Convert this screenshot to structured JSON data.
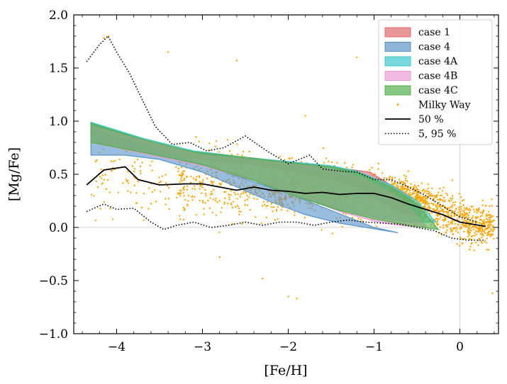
{
  "chart_data": {
    "type": "scatter",
    "xlabel": "[Fe/H]",
    "ylabel": "[Mg/Fe]",
    "xlim": [
      -4.5,
      0.45
    ],
    "ylim": [
      -1.0,
      2.0
    ],
    "xticks": [
      -4,
      -3,
      -2,
      -1,
      0
    ],
    "xtick_labels": [
      "−4",
      "−3",
      "−2",
      "−1",
      "0"
    ],
    "yticks": [
      -1.0,
      -0.5,
      0.0,
      0.5,
      1.0,
      1.5,
      2.0
    ],
    "ytick_labels": [
      "−1.0",
      "−0.5",
      "0.0",
      "0.5",
      "1.0",
      "1.5",
      "2.0"
    ],
    "reference_lines": {
      "y": 0.0,
      "x": 0.0
    },
    "bands": [
      {
        "name": "case 1",
        "color": "#e36b6f",
        "upper": [
          [
            -4.3,
            0.97
          ],
          [
            -3.6,
            0.8
          ],
          [
            -3.0,
            0.69
          ],
          [
            -2.5,
            0.66
          ],
          [
            -2.0,
            0.62
          ],
          [
            -1.5,
            0.57
          ],
          [
            -1.05,
            0.52
          ],
          [
            -0.6,
            0.3
          ],
          [
            -0.45,
            0.14
          ]
        ],
        "lower": [
          [
            -4.3,
            0.8
          ],
          [
            -3.6,
            0.72
          ],
          [
            -3.0,
            0.64
          ],
          [
            -2.5,
            0.6
          ],
          [
            -2.0,
            0.54
          ],
          [
            -1.5,
            0.46
          ],
          [
            -1.2,
            0.38
          ],
          [
            -1.0,
            0.28
          ],
          [
            -0.7,
            0.15
          ],
          [
            -0.45,
            0.1
          ]
        ]
      },
      {
        "name": "case 4",
        "color": "#5b95c9",
        "upper": [
          [
            -4.3,
            0.92
          ],
          [
            -3.8,
            0.8
          ],
          [
            -3.2,
            0.64
          ],
          [
            -2.6,
            0.48
          ],
          [
            -2.0,
            0.32
          ],
          [
            -1.5,
            0.16
          ],
          [
            -1.0,
            0.0
          ],
          [
            -0.72,
            -0.05
          ]
        ],
        "lower": [
          [
            -4.3,
            0.68
          ],
          [
            -3.9,
            0.68
          ],
          [
            -3.5,
            0.64
          ],
          [
            -3.0,
            0.52
          ],
          [
            -2.6,
            0.38
          ],
          [
            -2.2,
            0.24
          ],
          [
            -1.8,
            0.12
          ],
          [
            -1.4,
            0.04
          ],
          [
            -0.72,
            -0.05
          ]
        ]
      },
      {
        "name": "case 4A",
        "color": "#3fc9cf",
        "upper": [
          [
            -4.3,
            0.99
          ],
          [
            -3.7,
            0.84
          ],
          [
            -3.1,
            0.72
          ],
          [
            -2.5,
            0.66
          ],
          [
            -2.0,
            0.62
          ],
          [
            -1.5,
            0.58
          ],
          [
            -1.2,
            0.53
          ],
          [
            -0.8,
            0.4
          ],
          [
            -0.5,
            0.25
          ],
          [
            -0.28,
            0.05
          ]
        ],
        "lower": [
          [
            -4.3,
            0.8
          ],
          [
            -3.6,
            0.7
          ],
          [
            -3.0,
            0.6
          ],
          [
            -2.4,
            0.45
          ],
          [
            -1.9,
            0.3
          ],
          [
            -1.4,
            0.17
          ],
          [
            -1.0,
            0.1
          ],
          [
            -0.6,
            0.05
          ],
          [
            -0.28,
            0.05
          ]
        ]
      },
      {
        "name": "case 4B",
        "color": "#ed9cd6",
        "upper": [
          [
            -4.3,
            0.95
          ],
          [
            -3.6,
            0.8
          ],
          [
            -3.0,
            0.68
          ],
          [
            -2.5,
            0.64
          ],
          [
            -2.0,
            0.6
          ],
          [
            -1.5,
            0.55
          ],
          [
            -1.1,
            0.45
          ],
          [
            -0.7,
            0.28
          ],
          [
            -0.38,
            0.0
          ]
        ],
        "lower": [
          [
            -4.3,
            0.8
          ],
          [
            -3.6,
            0.68
          ],
          [
            -3.0,
            0.58
          ],
          [
            -2.4,
            0.44
          ],
          [
            -1.9,
            0.3
          ],
          [
            -1.4,
            0.15
          ],
          [
            -1.0,
            0.06
          ],
          [
            -0.7,
            0.02
          ],
          [
            -0.38,
            0.0
          ]
        ]
      },
      {
        "name": "case 4C",
        "color": "#55b14f",
        "upper": [
          [
            -4.3,
            0.98
          ],
          [
            -3.7,
            0.83
          ],
          [
            -3.1,
            0.71
          ],
          [
            -2.5,
            0.66
          ],
          [
            -2.0,
            0.61
          ],
          [
            -1.5,
            0.57
          ],
          [
            -1.2,
            0.52
          ],
          [
            -0.8,
            0.38
          ],
          [
            -0.5,
            0.22
          ],
          [
            -0.25,
            -0.02
          ]
        ],
        "lower": [
          [
            -4.3,
            0.8
          ],
          [
            -3.6,
            0.69
          ],
          [
            -3.0,
            0.59
          ],
          [
            -2.4,
            0.44
          ],
          [
            -1.9,
            0.29
          ],
          [
            -1.4,
            0.16
          ],
          [
            -1.0,
            0.08
          ],
          [
            -0.6,
            0.02
          ],
          [
            -0.25,
            -0.02
          ]
        ]
      }
    ],
    "scatter": {
      "name": "Milky Way",
      "color": "#ffa500",
      "n_points": 2200,
      "sample_points": [
        [
          -4.1,
          1.8
        ],
        [
          -3.4,
          1.65
        ],
        [
          -2.6,
          1.57
        ],
        [
          -1.2,
          1.6
        ],
        [
          -4.15,
          1.78
        ],
        [
          -4.25,
          0.85
        ],
        [
          -2.3,
          -0.48
        ],
        [
          -1.9,
          -0.67
        ],
        [
          -2.0,
          -0.65
        ],
        [
          -2.8,
          -0.28
        ],
        [
          0.38,
          -0.62
        ],
        [
          -1.8,
          1.05
        ],
        [
          -0.7,
          0.35
        ],
        [
          -0.1,
          0.2
        ],
        [
          0.2,
          0.05
        ],
        [
          -0.4,
          0.1
        ],
        [
          -2.5,
          0.35
        ],
        [
          -3.0,
          0.4
        ],
        [
          -1.5,
          0.3
        ]
      ]
    },
    "series": [
      {
        "name": "50 %",
        "style": "solid",
        "x": [
          -4.35,
          -4.15,
          -3.9,
          -3.75,
          -3.5,
          -3.2,
          -3.0,
          -2.8,
          -2.6,
          -2.4,
          -2.2,
          -2.0,
          -1.8,
          -1.6,
          -1.4,
          -1.2,
          -1.0,
          -0.8,
          -0.6,
          -0.4,
          -0.2,
          0.0,
          0.15,
          0.3
        ],
        "y": [
          0.4,
          0.54,
          0.57,
          0.45,
          0.4,
          0.41,
          0.41,
          0.38,
          0.35,
          0.38,
          0.35,
          0.34,
          0.32,
          0.33,
          0.31,
          0.32,
          0.32,
          0.28,
          0.22,
          0.17,
          0.12,
          0.05,
          0.03,
          0.01
        ]
      },
      {
        "name": "5, 95 %",
        "style": "dotted",
        "x": [
          -4.35,
          -4.2,
          -4.1,
          -4.0,
          -3.85,
          -3.7,
          -3.55,
          -3.35,
          -3.15,
          -2.95,
          -2.75,
          -2.5,
          -2.25,
          -2.0,
          -1.75,
          -1.6,
          -1.4,
          -1.2,
          -1.0,
          -0.8,
          -0.6,
          -0.4,
          -0.2,
          0.0,
          0.2
        ],
        "y": [
          1.56,
          1.72,
          1.8,
          1.65,
          1.45,
          1.2,
          0.95,
          0.78,
          0.8,
          0.72,
          0.75,
          0.86,
          0.72,
          0.6,
          0.68,
          0.55,
          0.53,
          0.52,
          0.45,
          0.45,
          0.38,
          0.3,
          0.2,
          0.1,
          0.05
        ]
      },
      {
        "name": "5, 95 % (lower)",
        "style": "dotted",
        "x": [
          -4.35,
          -4.15,
          -4.0,
          -3.8,
          -3.6,
          -3.45,
          -3.3,
          -3.1,
          -2.9,
          -2.7,
          -2.5,
          -2.3,
          -2.1,
          -1.9,
          -1.7,
          -1.5,
          -1.3,
          -1.1,
          -0.9,
          -0.7,
          -0.5,
          -0.3,
          -0.1,
          0.1,
          0.3
        ],
        "y": [
          0.15,
          0.22,
          0.17,
          0.18,
          0.05,
          -0.02,
          0.02,
          0.05,
          0.0,
          0.02,
          0.05,
          0.02,
          0.05,
          0.05,
          0.02,
          0.05,
          0.07,
          0.05,
          0.04,
          0.03,
          0.0,
          -0.03,
          -0.1,
          -0.12,
          -0.12
        ]
      }
    ],
    "legend": {
      "position": "top-right",
      "entries": [
        {
          "label": "case 1",
          "kind": "patch",
          "color": "#e36b6f"
        },
        {
          "label": "case 4",
          "kind": "patch",
          "color": "#5b95c9"
        },
        {
          "label": "case 4A",
          "kind": "patch",
          "color": "#3fc9cf"
        },
        {
          "label": "case 4B",
          "kind": "patch",
          "color": "#ed9cd6"
        },
        {
          "label": "case 4C",
          "kind": "patch",
          "color": "#55b14f"
        },
        {
          "label": "Milky Way",
          "kind": "dot",
          "color": "#ffa500"
        },
        {
          "label": "50 %",
          "kind": "solid",
          "color": "#000000"
        },
        {
          "label": "5, 95 %",
          "kind": "dotted",
          "color": "#000000"
        }
      ]
    }
  }
}
